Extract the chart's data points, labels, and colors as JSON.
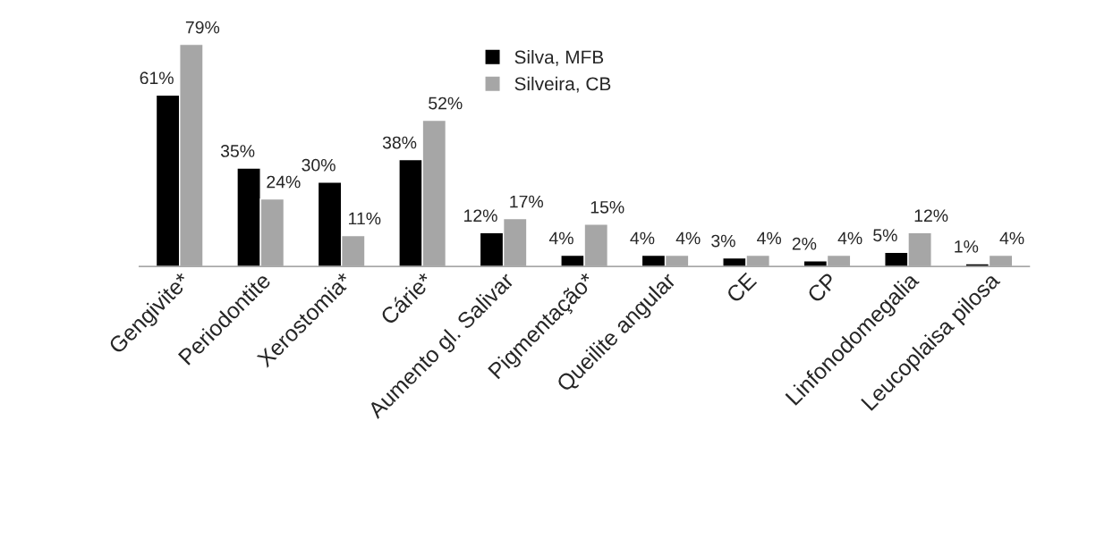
{
  "chart_data": {
    "type": "bar",
    "categories": [
      "Gengivite*",
      "Periodontite",
      "Xerostomia*",
      "Cárie*",
      "Aumento gl. Salivar",
      "Pigmentação*",
      "Queilite angular",
      "CE",
      "CP",
      "Linfonodomegalia",
      "Leucoplaisa pilosa"
    ],
    "series": [
      {
        "name": "Silva, MFB",
        "color": "#000000",
        "values": [
          61,
          35,
          30,
          38,
          12,
          4,
          4,
          3,
          2,
          5,
          1
        ],
        "value_labels": [
          "61%",
          "35%",
          "30%",
          "38%",
          "12%",
          "4%",
          "4%",
          "3%",
          "2%",
          "5%",
          "1%"
        ]
      },
      {
        "name": "Silveira, CB",
        "color": "#a6a6a6",
        "values": [
          79,
          24,
          11,
          52,
          17,
          15,
          4,
          4,
          4,
          12,
          4
        ],
        "value_labels": [
          "79%",
          "24%",
          "11%",
          "52%",
          "17%",
          "15%",
          "4%",
          "4%",
          "4%",
          "12%",
          "4%"
        ]
      }
    ],
    "legend": "top",
    "grid": false
  }
}
